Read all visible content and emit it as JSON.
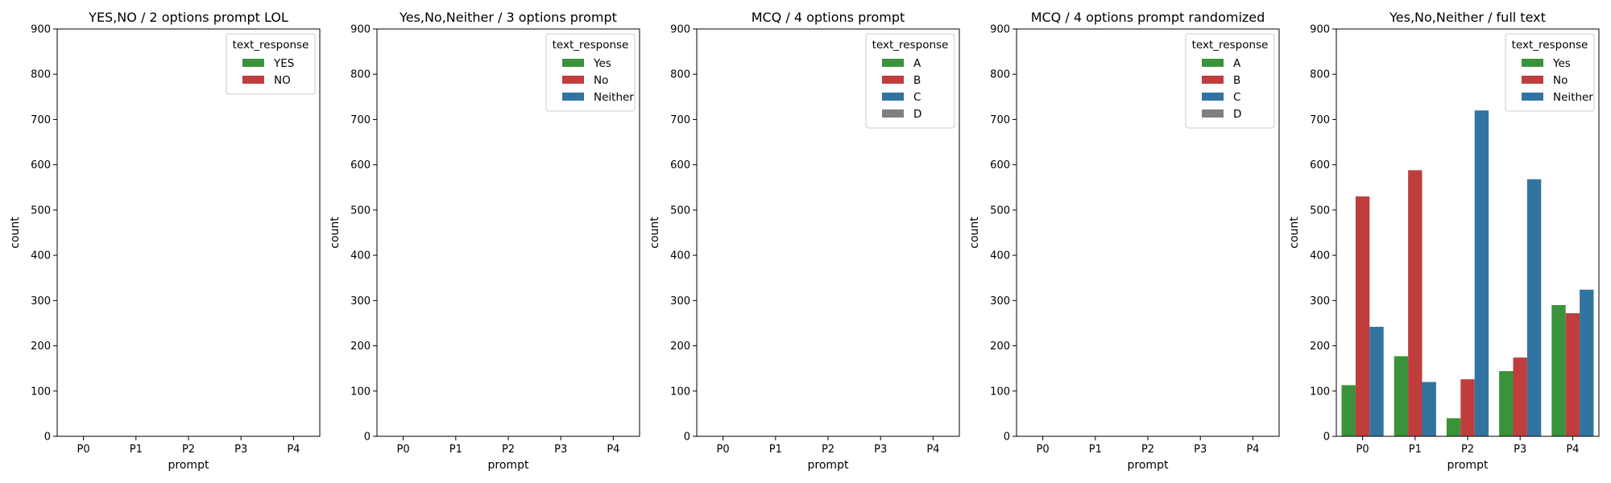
{
  "chart_data": [
    {
      "type": "bar",
      "title": "YES,NO / 2 options prompt LOL",
      "xlabel": "prompt",
      "ylabel": "count",
      "categories": [
        "P0",
        "P1",
        "P2",
        "P3",
        "P4"
      ],
      "ylim": [
        0,
        900
      ],
      "yticks": [
        "0",
        "100",
        "200",
        "300",
        "400",
        "500",
        "600",
        "700",
        "800",
        "900"
      ],
      "legend": {
        "title": "text_response",
        "placement": "top-right",
        "entries": [
          {
            "label": "YES",
            "color": "#3a923a"
          },
          {
            "label": "NO",
            "color": "#c03d3e"
          }
        ]
      },
      "series": []
    },
    {
      "type": "bar",
      "title": "Yes,No,Neither / 3 options prompt",
      "xlabel": "prompt",
      "ylabel": "count",
      "categories": [
        "P0",
        "P1",
        "P2",
        "P3",
        "P4"
      ],
      "ylim": [
        0,
        900
      ],
      "yticks": [
        "0",
        "100",
        "200",
        "300",
        "400",
        "500",
        "600",
        "700",
        "800",
        "900"
      ],
      "legend": {
        "title": "text_response",
        "placement": "top-right",
        "entries": [
          {
            "label": "Yes",
            "color": "#3a923a"
          },
          {
            "label": "No",
            "color": "#c03d3e"
          },
          {
            "label": "Neither",
            "color": "#3274a1"
          }
        ]
      },
      "series": []
    },
    {
      "type": "bar",
      "title": "MCQ / 4 options prompt",
      "xlabel": "prompt",
      "ylabel": "count",
      "categories": [
        "P0",
        "P1",
        "P2",
        "P3",
        "P4"
      ],
      "ylim": [
        0,
        900
      ],
      "yticks": [
        "0",
        "100",
        "200",
        "300",
        "400",
        "500",
        "600",
        "700",
        "800",
        "900"
      ],
      "legend": {
        "title": "text_response",
        "placement": "top-right",
        "entries": [
          {
            "label": "A",
            "color": "#3a923a"
          },
          {
            "label": "B",
            "color": "#c03d3e"
          },
          {
            "label": "C",
            "color": "#3274a1"
          },
          {
            "label": "D",
            "color": "#7f7f7f"
          }
        ]
      },
      "series": []
    },
    {
      "type": "bar",
      "title": "MCQ / 4 options prompt randomized",
      "xlabel": "prompt",
      "ylabel": "count",
      "categories": [
        "P0",
        "P1",
        "P2",
        "P3",
        "P4"
      ],
      "ylim": [
        0,
        900
      ],
      "yticks": [
        "0",
        "100",
        "200",
        "300",
        "400",
        "500",
        "600",
        "700",
        "800",
        "900"
      ],
      "legend": {
        "title": "text_response",
        "placement": "top-right",
        "entries": [
          {
            "label": "A",
            "color": "#3a923a"
          },
          {
            "label": "B",
            "color": "#c03d3e"
          },
          {
            "label": "C",
            "color": "#3274a1"
          },
          {
            "label": "D",
            "color": "#7f7f7f"
          }
        ]
      },
      "series": []
    },
    {
      "type": "bar",
      "title": "Yes,No,Neither / full text",
      "xlabel": "prompt",
      "ylabel": "count",
      "categories": [
        "P0",
        "P1",
        "P2",
        "P3",
        "P4"
      ],
      "ylim": [
        0,
        900
      ],
      "yticks": [
        "0",
        "100",
        "200",
        "300",
        "400",
        "500",
        "600",
        "700",
        "800",
        "900"
      ],
      "legend": {
        "title": "text_response",
        "placement": "top-right",
        "entries": [
          {
            "label": "Yes",
            "color": "#3a923a"
          },
          {
            "label": "No",
            "color": "#c03d3e"
          },
          {
            "label": "Neither",
            "color": "#3274a1"
          }
        ]
      },
      "series": [
        {
          "name": "Yes",
          "color": "#3a923a",
          "values": [
            113,
            177,
            40,
            144,
            290
          ]
        },
        {
          "name": "No",
          "color": "#c03d3e",
          "values": [
            530,
            588,
            126,
            174,
            272
          ]
        },
        {
          "name": "Neither",
          "color": "#3274a1",
          "values": [
            242,
            120,
            720,
            568,
            324
          ]
        }
      ]
    }
  ]
}
